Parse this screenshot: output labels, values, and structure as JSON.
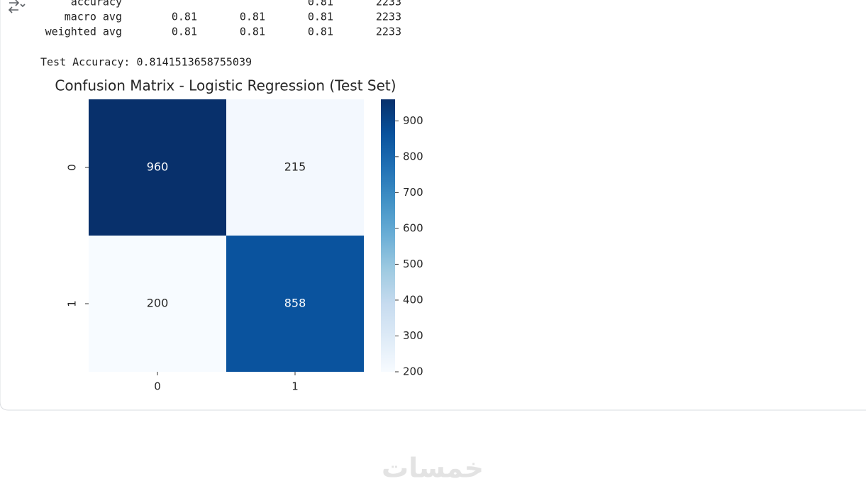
{
  "report": {
    "rows": [
      {
        "label": "accuracy",
        "f1": 0.81,
        "support": 2233
      },
      {
        "label": "macro avg",
        "precision": 0.81,
        "recall": 0.81,
        "f1": 0.81,
        "support": 2233
      },
      {
        "label": "weighted avg",
        "precision": 0.81,
        "recall": 0.81,
        "f1": 0.81,
        "support": 2233
      }
    ]
  },
  "test_accuracy": "Test Accuracy: 0.8141513658755039",
  "chart_data": {
    "type": "heatmap",
    "title": "Confusion Matrix - Logistic Regression (Test Set)",
    "x_categories": [
      "0",
      "1"
    ],
    "y_categories": [
      "0",
      "1"
    ],
    "values": [
      [
        960,
        215
      ],
      [
        200,
        858
      ]
    ],
    "colormap": "Blues",
    "clim": [
      200,
      960
    ],
    "cticks": [
      200,
      300,
      400,
      500,
      600,
      700,
      800,
      900
    ]
  },
  "watermark": "خمسات"
}
